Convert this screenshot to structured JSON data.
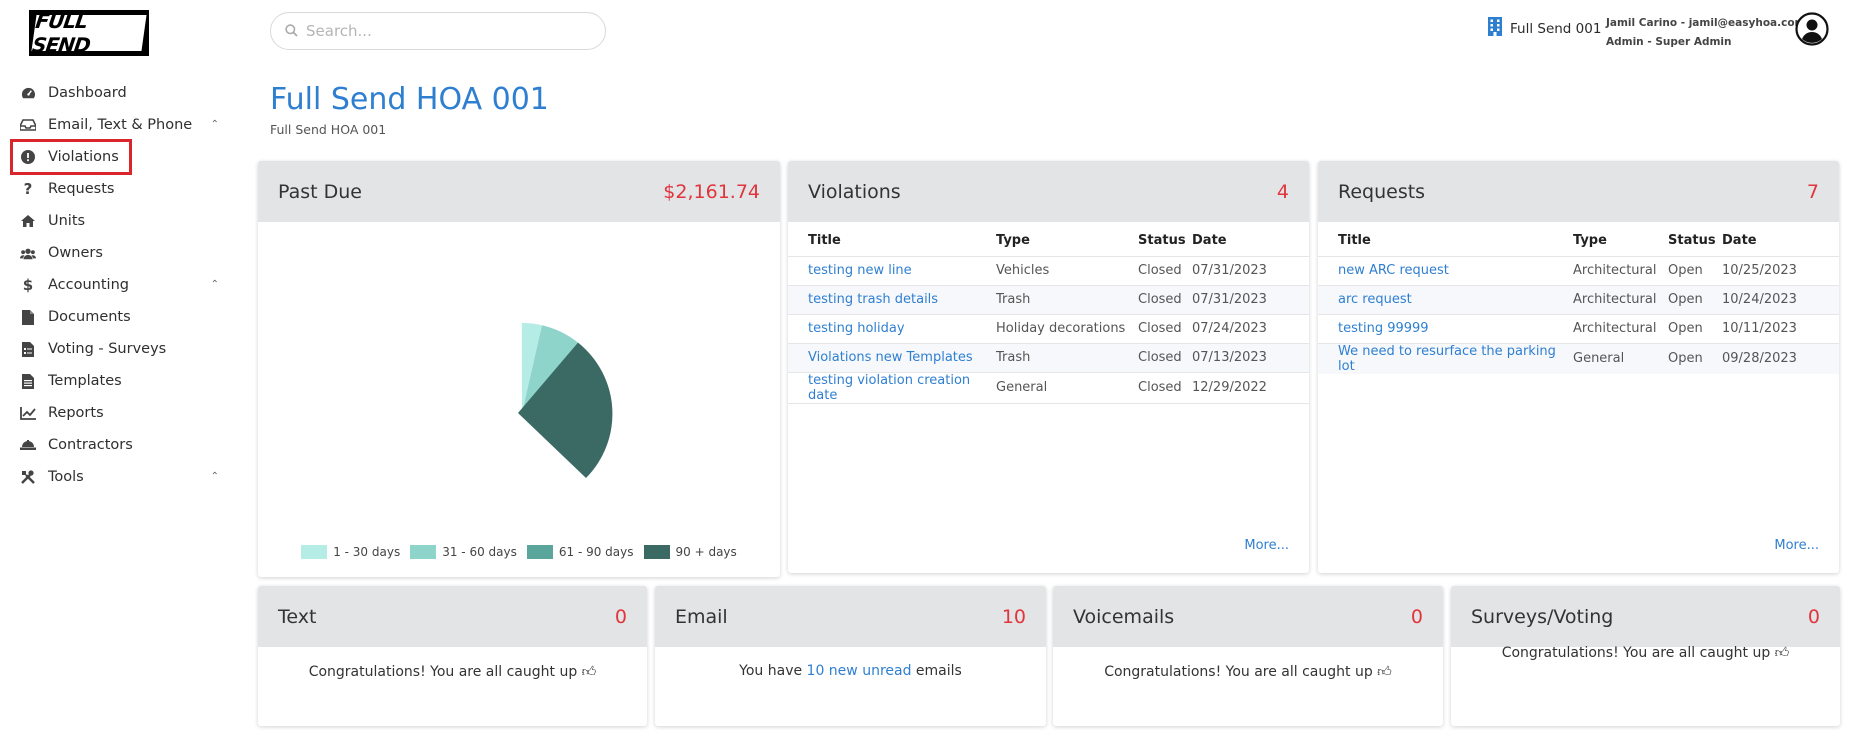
{
  "brand": {
    "logo_text": "FULL SEND"
  },
  "search": {
    "placeholder": "Search..."
  },
  "header": {
    "hoa_name": "Full Send 001",
    "user_line1": "Jamil Carino - jamil@easyhoa.com",
    "user_line2": "Admin - Super Admin"
  },
  "sidebar": {
    "items": [
      {
        "label": "Dashboard",
        "icon": "gauge-icon"
      },
      {
        "label": "Email, Text & Phone",
        "icon": "inbox-icon",
        "expandable": true
      },
      {
        "label": "Violations",
        "icon": "exclamation-circle-icon",
        "highlighted": true
      },
      {
        "label": "Requests",
        "icon": "question-icon"
      },
      {
        "label": "Units",
        "icon": "home-icon"
      },
      {
        "label": "Owners",
        "icon": "users-icon"
      },
      {
        "label": "Accounting",
        "icon": "dollar-icon",
        "expandable": true
      },
      {
        "label": "Documents",
        "icon": "file-icon"
      },
      {
        "label": "Voting - Surveys",
        "icon": "ballot-icon"
      },
      {
        "label": "Templates",
        "icon": "file-text-icon"
      },
      {
        "label": "Reports",
        "icon": "chart-line-icon"
      },
      {
        "label": "Contractors",
        "icon": "hard-hat-icon"
      },
      {
        "label": "Tools",
        "icon": "tools-icon",
        "expandable": true
      }
    ]
  },
  "page": {
    "title": "Full Send HOA 001",
    "subtitle": "Full Send HOA 001"
  },
  "past_due": {
    "title": "Past Due",
    "amount": "$2,161.74",
    "legend": [
      "1 - 30 days",
      "31 - 60 days",
      "61 - 90 days",
      "90 + days"
    ],
    "colors": [
      "#b5ece5",
      "#8ed4cb",
      "#5ba69c",
      "#3a6a63"
    ]
  },
  "violations": {
    "title": "Violations",
    "count": "4",
    "columns": [
      "Title",
      "Type",
      "Status",
      "Date"
    ],
    "rows": [
      [
        "testing new line",
        "Vehicles",
        "Closed",
        "07/31/2023"
      ],
      [
        "testing trash details",
        "Trash",
        "Closed",
        "07/31/2023"
      ],
      [
        "testing holiday",
        "Holiday decorations",
        "Closed",
        "07/24/2023"
      ],
      [
        "Violations new Templates",
        "Trash",
        "Closed",
        "07/13/2023"
      ],
      [
        "testing violation creation date",
        "General",
        "Closed",
        "12/29/2022"
      ]
    ],
    "more": "More..."
  },
  "requests": {
    "title": "Requests",
    "count": "7",
    "columns": [
      "Title",
      "Type",
      "Status",
      "Date"
    ],
    "rows": [
      [
        "new ARC request",
        "Architectural",
        "Open",
        "10/25/2023"
      ],
      [
        "arc request",
        "Architectural",
        "Open",
        "10/24/2023"
      ],
      [
        "testing 99999",
        "Architectural",
        "Open",
        "10/11/2023"
      ],
      [
        "We need to resurface the parking lot",
        "General",
        "Open",
        "09/28/2023"
      ]
    ],
    "more": "More..."
  },
  "text_card": {
    "title": "Text",
    "count": "0",
    "message": "Congratulations! You are all caught up"
  },
  "email_card": {
    "title": "Email",
    "count": "10",
    "msg_pre": "You have ",
    "msg_link": "10 new unread",
    "msg_post": " emails"
  },
  "voicemail_card": {
    "title": "Voicemails",
    "count": "0",
    "message": "Congratulations! You are all caught up"
  },
  "surveys_card": {
    "title": "Surveys/Voting",
    "count": "0",
    "message": "Congratulations! You are all caught up"
  },
  "colors": {
    "accent": "#2f7fd1",
    "alert": "#e0353d",
    "card_header": "#e3e4e6"
  }
}
